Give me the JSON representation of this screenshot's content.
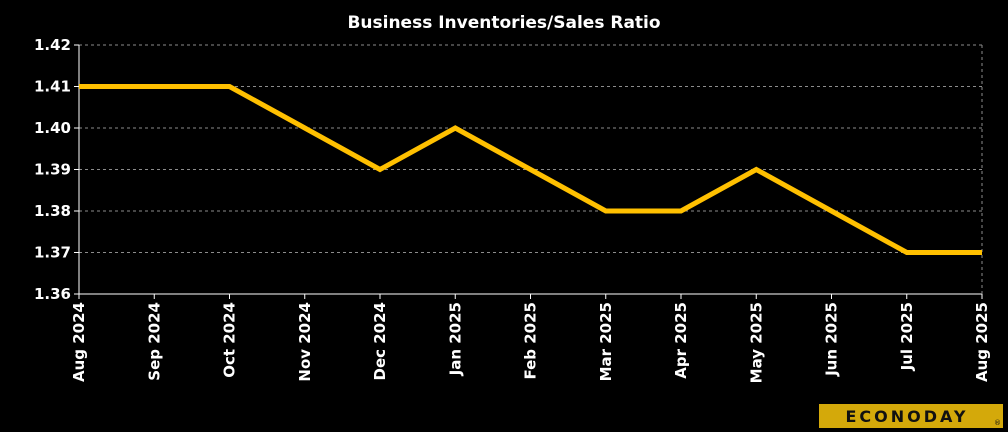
{
  "chart_data": {
    "type": "line",
    "title": "Business Inventories/Sales  Ratio",
    "xlabel": "",
    "ylabel": "",
    "x": [
      "Aug 2024",
      "Sep 2024",
      "Oct 2024",
      "Nov 2024",
      "Dec 2024",
      "Jan 2025",
      "Feb 2025",
      "Mar 2025",
      "Apr 2025",
      "May 2025",
      "Jun 2025",
      "Jul 2025",
      "Aug 2025"
    ],
    "series": [
      {
        "values": [
          1.41,
          1.41,
          1.41,
          1.4,
          1.39,
          1.4,
          1.39,
          1.38,
          1.38,
          1.39,
          1.38,
          1.37,
          1.37
        ],
        "color": "#ffc000"
      }
    ],
    "ylim": [
      1.36,
      1.42
    ],
    "yticks": [
      1.36,
      1.37,
      1.38,
      1.39,
      1.4,
      1.41,
      1.42
    ],
    "ytick_labels": [
      "1.36",
      "1.37",
      "1.38",
      "1.39",
      "1.40",
      "1.41",
      "1.42"
    ],
    "grid": true,
    "legend": "none",
    "background_color": "#000000",
    "text_color": "#ffffff",
    "grid_color": "#8c8c8c"
  },
  "branding": {
    "logo_text": "ECONODAY",
    "logo_bg_color": "#d4a90a"
  }
}
